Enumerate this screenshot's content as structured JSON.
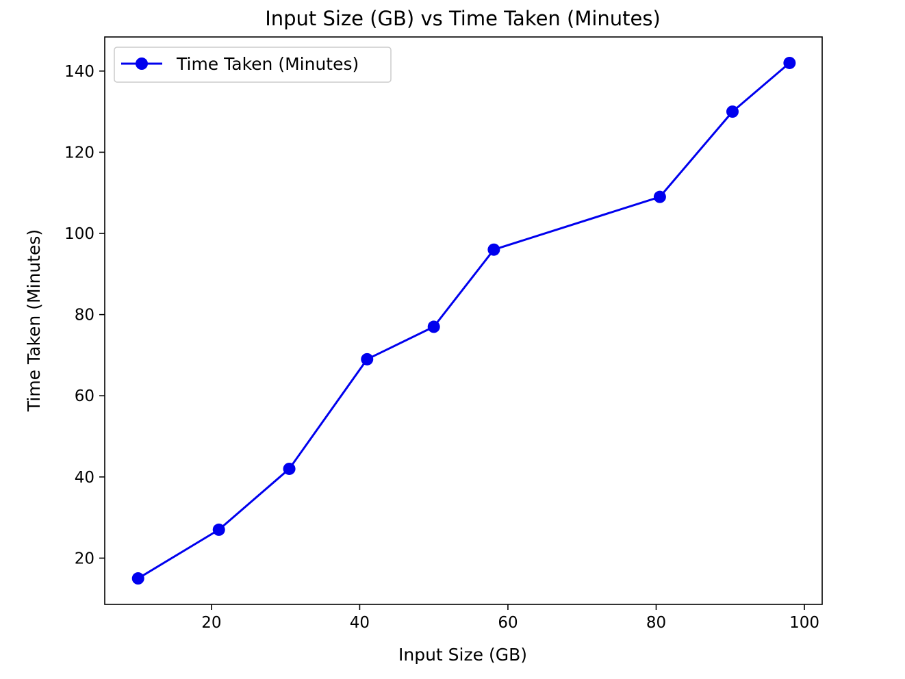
{
  "chart_data": {
    "type": "line",
    "title": "Input Size (GB) vs Time Taken (Minutes)",
    "xlabel": "Input Size (GB)",
    "ylabel": "Time Taken (Minutes)",
    "xlim": [
      5.6,
      102.4
    ],
    "ylim": [
      8.6,
      148.4
    ],
    "xticks": [
      20,
      40,
      60,
      80,
      100
    ],
    "yticks": [
      20,
      40,
      60,
      80,
      100,
      120,
      140
    ],
    "grid": false,
    "legend_position": "top-left",
    "series": [
      {
        "name": "Time Taken (Minutes)",
        "color": "#0000ee",
        "marker": "circle",
        "x": [
          10.1,
          21.0,
          30.5,
          41.0,
          50.0,
          58.1,
          80.5,
          90.3,
          98.0
        ],
        "y": [
          15,
          27,
          42,
          69,
          77,
          96,
          109,
          130,
          142
        ]
      }
    ]
  }
}
